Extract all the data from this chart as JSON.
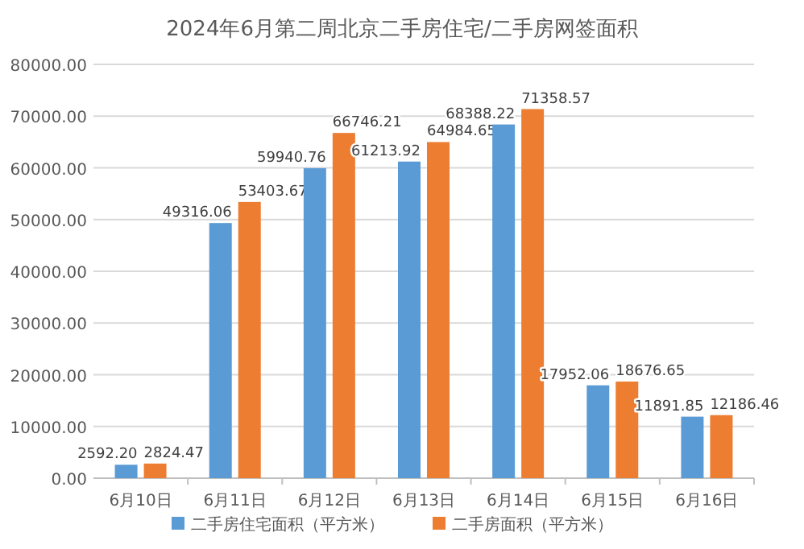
{
  "chart_data": {
    "type": "bar",
    "title": "2024年6月第二周北京二手房住宅/二手房网签面积",
    "categories": [
      "6月10日",
      "6月11日",
      "6月12日",
      "6月13日",
      "6月14日",
      "6月15日",
      "6月16日"
    ],
    "series": [
      {
        "name": "二手房住宅面积（平方米）",
        "color": "#5b9bd5",
        "values": [
          2592.2,
          49316.06,
          59940.76,
          61213.92,
          68388.22,
          17952.06,
          11891.85
        ],
        "value_labels": [
          "2592.20",
          "49316.06",
          "59940.76",
          "61213.92",
          "68388.22",
          "17952.06",
          "11891.85"
        ]
      },
      {
        "name": "二手房面积（平方米）",
        "color": "#ed7d31",
        "values": [
          2824.47,
          53403.67,
          66746.21,
          64984.65,
          71358.57,
          18676.65,
          12186.46
        ],
        "value_labels": [
          "2824.47",
          "53403.67",
          "66746.21",
          "64984.65",
          "71358.57",
          "18676.65",
          "12186.46"
        ]
      }
    ],
    "ylim": [
      0,
      80000
    ],
    "yticks": [
      {
        "value": 0,
        "label": "0.00"
      },
      {
        "value": 10000,
        "label": "10000.00"
      },
      {
        "value": 20000,
        "label": "20000.00"
      },
      {
        "value": 30000,
        "label": "30000.00"
      },
      {
        "value": 40000,
        "label": "40000.00"
      },
      {
        "value": 50000,
        "label": "50000.00"
      },
      {
        "value": 60000,
        "label": "60000.00"
      },
      {
        "value": 70000,
        "label": "70000.00"
      },
      {
        "value": 80000,
        "label": "80000.00"
      }
    ],
    "grid": "y",
    "legend": "bottom"
  }
}
